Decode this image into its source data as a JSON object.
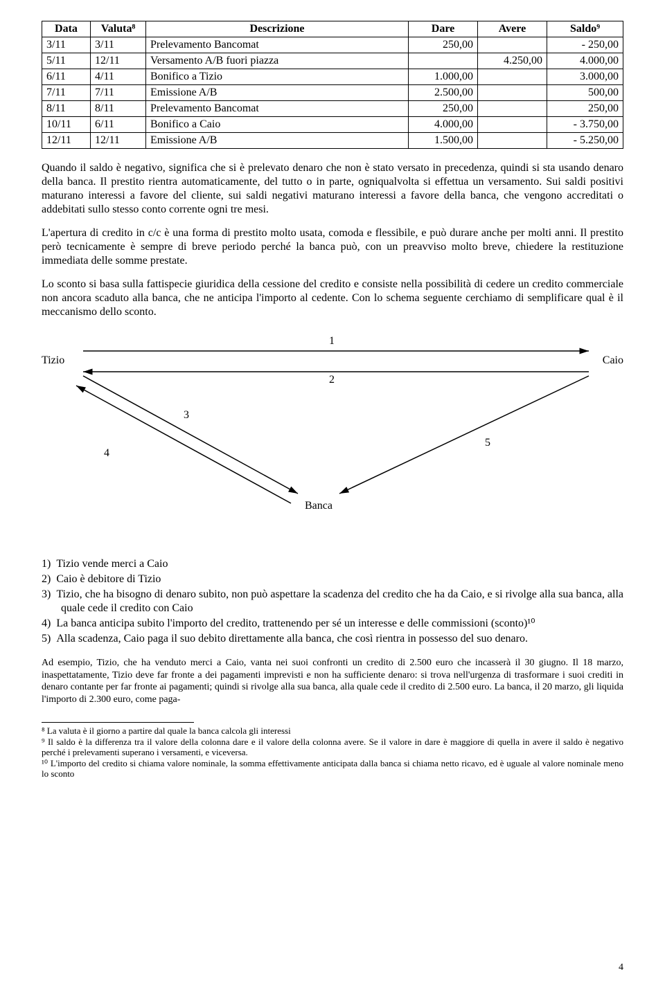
{
  "table": {
    "headers": [
      "Data",
      "Valuta⁸",
      "Descrizione",
      "Dare",
      "Avere",
      "Saldo⁹"
    ],
    "rows": [
      [
        "3/11",
        "3/11",
        "Prelevamento Bancomat",
        "250,00",
        "",
        "- 250,00"
      ],
      [
        "5/11",
        "12/11",
        "Versamento A/B fuori piazza",
        "",
        "4.250,00",
        "4.000,00"
      ],
      [
        "6/11",
        "4/11",
        "Bonifico a Tizio",
        "1.000,00",
        "",
        "3.000,00"
      ],
      [
        "7/11",
        "7/11",
        "Emissione A/B",
        "2.500,00",
        "",
        "500,00"
      ],
      [
        "8/11",
        "8/11",
        "Prelevamento Bancomat",
        "250,00",
        "",
        "250,00"
      ],
      [
        "10/11",
        "6/11",
        "Bonifico a Caio",
        "4.000,00",
        "",
        "- 3.750,00"
      ],
      [
        "12/11",
        "12/11",
        "Emissione A/B",
        "1.500,00",
        "",
        "- 5.250,00"
      ]
    ]
  },
  "para1": "Quando il saldo è negativo, significa che si è prelevato denaro che non è stato versato in precedenza, quindi si sta usando denaro della banca. Il prestito rientra automaticamente, del tutto o in parte, ogniqualvolta si effettua un versamento. Sui saldi positivi maturano interessi a favore del cliente, sui saldi negativi maturano interessi a favore della banca, che vengono accreditati o addebitati sullo stesso conto corrente ogni tre mesi.",
  "para2": "L'apertura di credito in c/c è una forma di prestito molto usata, comoda e flessibile, e può durare anche per molti anni. Il prestito però tecnicamente è sempre di breve periodo perché la banca può, con un preavviso molto breve, chiedere la restituzione immediata delle somme prestate.",
  "para3": "Lo sconto si basa sulla fattispecie giuridica della cessione del credito e consiste nella possibilità di cedere un credito commerciale non ancora scaduto alla banca, che ne anticipa l'importo al cedente. Con lo schema seguente cerchiamo di semplificare qual è il meccanismo dello sconto.",
  "diagram": {
    "tizio": "Tizio",
    "caio": "Caio",
    "banca": "Banca",
    "n1": "1",
    "n2": "2",
    "n3": "3",
    "n4": "4",
    "n5": "5"
  },
  "list": {
    "i1_num": "1)",
    "i1": "Tizio vende merci a Caio",
    "i2_num": "2)",
    "i2": "Caio è debitore di Tizio",
    "i3_num": "3)",
    "i3": "Tizio, che ha bisogno di denaro subito, non può aspettare la scadenza del credito che ha da Caio, e si rivolge alla sua banca, alla quale cede il credito con Caio",
    "i4_num": "4)",
    "i4": "La banca anticipa subito l'importo del credito, trattenendo per sé un interesse e delle commissioni (sconto)¹⁰",
    "i5_num": "5)",
    "i5": "Alla scadenza, Caio paga il suo debito direttamente alla banca, che così rientra in possesso del suo denaro."
  },
  "example": "Ad esempio, Tizio, che ha venduto merci a Caio, vanta nei suoi confronti un credito di 2.500 euro che incasserà il 30 giugno. Il 18 marzo, inaspettatamente, Tizio deve far fronte a dei pagamenti imprevisti e non ha sufficiente denaro: si trova nell'urgenza di trasformare i suoi crediti in denaro contante per far fronte ai pagamenti; quindi si rivolge alla sua banca, alla quale cede il credito di 2.500 euro. La banca, il 20 marzo, gli liquida l'importo di 2.300 euro, come paga-",
  "footnotes": {
    "f8": "⁸ La valuta è il giorno a partire dal quale la banca calcola gli interessi",
    "f9": "⁹ Il saldo è la differenza tra il valore della colonna dare e il valore della colonna avere. Se il valore in dare è maggiore di quella in avere il saldo è negativo perché i prelevamenti superano i versamenti, e viceversa.",
    "f10": "¹⁰ L'importo del credito si chiama valore nominale, la somma effettivamente anticipata dalla banca si chiama netto ricavo, ed è uguale al valore nominale meno lo sconto"
  },
  "page_number": "4"
}
